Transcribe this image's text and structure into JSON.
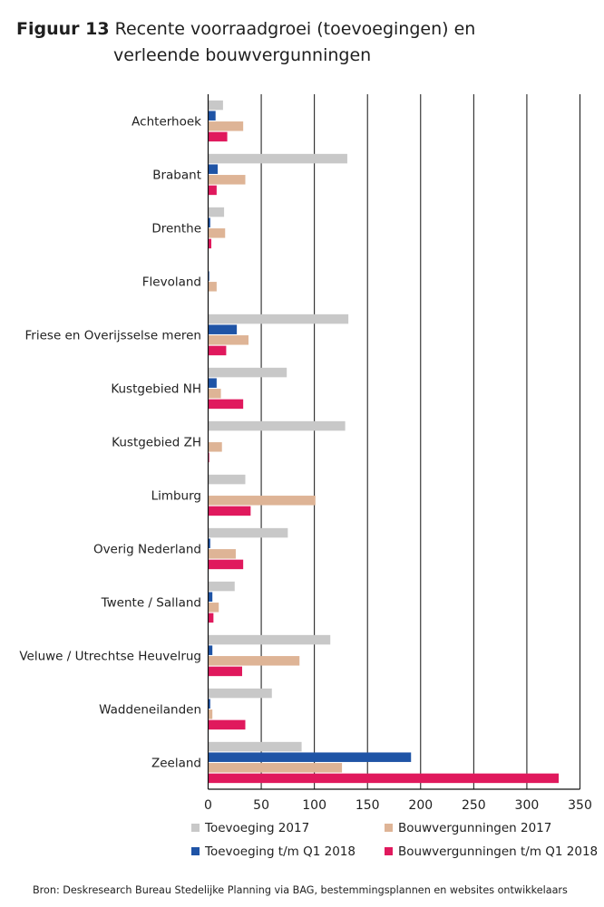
{
  "title": {
    "figure_label": "Figuur 13",
    "text_line1": "Recente voorraadgroei (toevoegingen) en",
    "text_line2": "verleende bouwvergunningen"
  },
  "source": "Bron: Deskresearch Bureau Stedelijke Planning via BAG, bestemmingsplannen en websites ontwikkelaars",
  "chart_data": {
    "type": "bar",
    "orientation": "horizontal",
    "categories": [
      "Achterhoek",
      "Brabant",
      "Drenthe",
      "Flevoland",
      "Friese en Overijsselse meren",
      "Kustgebied NH",
      "Kustgebied ZH",
      "Limburg",
      "Overig Nederland",
      "Twente / Salland",
      "Veluwe / Utrechtse Heuvelrug",
      "Waddeneilanden",
      "Zeeland"
    ],
    "series": [
      {
        "name": "Toevoeging 2017",
        "color": "#c8c8c8",
        "values": [
          14,
          131,
          15,
          0,
          132,
          74,
          129,
          35,
          75,
          25,
          115,
          60,
          88
        ]
      },
      {
        "name": "Toevoeging t/m Q1 2018",
        "color": "#1f54a6",
        "values": [
          7,
          9,
          2,
          1,
          27,
          8,
          0,
          0,
          2,
          4,
          4,
          2,
          191
        ]
      },
      {
        "name": "Bouwvergunningen 2017",
        "color": "#deb496",
        "values": [
          33,
          35,
          16,
          8,
          38,
          12,
          13,
          101,
          26,
          10,
          86,
          4,
          126
        ]
      },
      {
        "name": "Bouwvergunningen t/m Q1 2018",
        "color": "#e0195d",
        "values": [
          18,
          8,
          3,
          0,
          17,
          33,
          1,
          40,
          33,
          5,
          32,
          35,
          330
        ]
      }
    ],
    "x_ticks": [
      0,
      50,
      100,
      150,
      200,
      250,
      300,
      350
    ],
    "xlim": [
      0,
      350
    ],
    "grid": "vertical",
    "legend": [
      {
        "label": "Toevoeging 2017",
        "color": "#c8c8c8"
      },
      {
        "label": "Bouwvergunningen 2017",
        "color": "#deb496"
      },
      {
        "label": "Toevoeging t/m Q1 2018",
        "color": "#1f54a6"
      },
      {
        "label": "Bouwvergunningen t/m Q1 2018",
        "color": "#e0195d"
      }
    ],
    "legend_position": "bottom"
  }
}
